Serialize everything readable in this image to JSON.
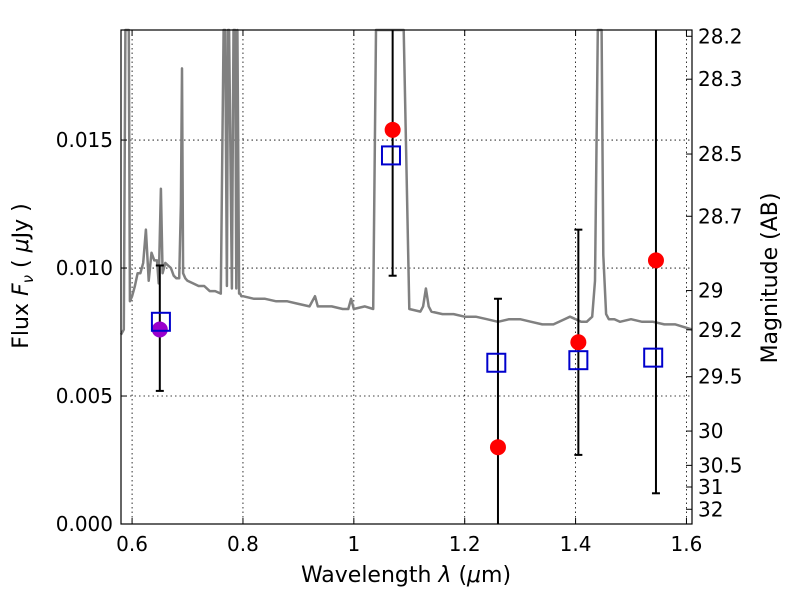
{
  "chart_data": {
    "type": "scatter",
    "title": "",
    "xlabel_pre": "Wavelength  ",
    "xlabel_var": "λ",
    "xlabel_post": " (",
    "xlabel_unit_mu": "μ",
    "xlabel_unit_rest": "m)",
    "ylabel_pre": "Flux  ",
    "ylabel_var": "F",
    "ylabel_sub": "ν",
    "ylabel_post": "  ( ",
    "ylabel_unit_mu": "μ",
    "ylabel_unit_rest": "Jy )",
    "y2label": "Magnitude (AB)",
    "xlim": [
      0.58,
      1.61
    ],
    "ylim": [
      0.0,
      0.0193
    ],
    "xticks": [
      0.6,
      0.8,
      1.0,
      1.2,
      1.4,
      1.6
    ],
    "xtick_labels": [
      "0.6",
      "0.8",
      "1",
      "1.2",
      "1.4",
      "1.6"
    ],
    "yticks": [
      0.0,
      0.005,
      0.01,
      0.015
    ],
    "ytick_labels": [
      "0.000",
      "0.005",
      "0.010",
      "0.015"
    ],
    "y2ticks": [
      28.2,
      28.3,
      28.5,
      28.7,
      29,
      29.2,
      29.5,
      30,
      30.5,
      31,
      32
    ],
    "y2tick_labels": [
      "28.2",
      "28.3",
      "28.5",
      "28.7",
      "29",
      "29.2",
      "29.5",
      "30",
      "30.5",
      "31",
      "32"
    ],
    "grid": true,
    "colors": {
      "model": "#808080",
      "observed": "#ff0000",
      "model_photometry": "#0000cc",
      "overlap": "#9900cc",
      "errorbar": "#000000"
    },
    "model_spectrum": {
      "x": [
        0.58,
        0.585,
        0.588,
        0.591,
        0.594,
        0.596,
        0.6,
        0.605,
        0.61,
        0.615,
        0.62,
        0.625,
        0.63,
        0.635,
        0.64,
        0.645,
        0.648,
        0.652,
        0.655,
        0.66,
        0.665,
        0.67,
        0.675,
        0.68,
        0.685,
        0.688,
        0.69,
        0.692,
        0.696,
        0.7,
        0.71,
        0.72,
        0.73,
        0.74,
        0.75,
        0.76,
        0.765,
        0.768,
        0.771,
        0.773,
        0.775,
        0.78,
        0.783,
        0.786,
        0.788,
        0.79,
        0.793,
        0.795,
        0.797,
        0.8,
        0.82,
        0.84,
        0.86,
        0.88,
        0.9,
        0.92,
        0.93,
        0.935,
        0.94,
        0.96,
        0.98,
        0.99,
        0.995,
        1.0,
        1.02,
        1.035,
        1.04,
        1.05,
        1.06,
        1.065,
        1.07,
        1.075,
        1.08,
        1.085,
        1.09,
        1.1,
        1.12,
        1.125,
        1.13,
        1.135,
        1.14,
        1.16,
        1.18,
        1.2,
        1.22,
        1.24,
        1.26,
        1.28,
        1.3,
        1.32,
        1.34,
        1.36,
        1.38,
        1.39,
        1.4,
        1.41,
        1.42,
        1.43,
        1.435,
        1.44,
        1.443,
        1.447,
        1.45,
        1.455,
        1.46,
        1.47,
        1.48,
        1.5,
        1.52,
        1.54,
        1.56,
        1.58,
        1.61
      ],
      "y": [
        0.0074,
        0.0076,
        0.0193,
        0.0193,
        0.0195,
        0.0087,
        0.0089,
        0.0093,
        0.0098,
        0.0098,
        0.0102,
        0.0115,
        0.0095,
        0.0106,
        0.0103,
        0.0103,
        0.0094,
        0.0131,
        0.0098,
        0.0102,
        0.0101,
        0.01,
        0.0097,
        0.0096,
        0.0096,
        0.0125,
        0.0178,
        0.0098,
        0.0096,
        0.0095,
        0.0094,
        0.0093,
        0.0093,
        0.0091,
        0.0091,
        0.009,
        0.0195,
        0.0195,
        0.0093,
        0.0195,
        0.0195,
        0.0092,
        0.0195,
        0.0195,
        0.0092,
        0.0195,
        0.009,
        0.009,
        0.0089,
        0.0089,
        0.0088,
        0.0088,
        0.0087,
        0.0087,
        0.0086,
        0.0085,
        0.0089,
        0.0085,
        0.0085,
        0.0085,
        0.0084,
        0.0084,
        0.0088,
        0.0084,
        0.0085,
        0.0084,
        0.0195,
        0.0195,
        0.0195,
        0.0195,
        0.0195,
        0.0195,
        0.0195,
        0.0195,
        0.0195,
        0.0084,
        0.0083,
        0.0085,
        0.0092,
        0.0085,
        0.0083,
        0.0082,
        0.0082,
        0.0081,
        0.0081,
        0.008,
        0.0079,
        0.008,
        0.008,
        0.0079,
        0.0078,
        0.0078,
        0.008,
        0.0081,
        0.008,
        0.0079,
        0.0079,
        0.0081,
        0.0095,
        0.0195,
        0.0195,
        0.0195,
        0.0105,
        0.0082,
        0.008,
        0.008,
        0.0079,
        0.008,
        0.0079,
        0.0079,
        0.0078,
        0.0078,
        0.0076
      ]
    },
    "observed": {
      "x": [
        0.65,
        1.07,
        1.26,
        1.405,
        1.545
      ],
      "y": [
        0.0076,
        0.0154,
        0.003,
        0.0071,
        0.0103
      ],
      "yerr_low": [
        0.0052,
        0.0097,
        0.0,
        0.0027,
        0.0012
      ],
      "yerr_high": [
        0.0101,
        0.0195,
        0.0088,
        0.0115,
        0.0195
      ]
    },
    "model_photometry": {
      "x": [
        0.652,
        1.067,
        1.257,
        1.405,
        1.54
      ],
      "y": [
        0.0079,
        0.0144,
        0.0063,
        0.0064,
        0.0065
      ]
    }
  }
}
